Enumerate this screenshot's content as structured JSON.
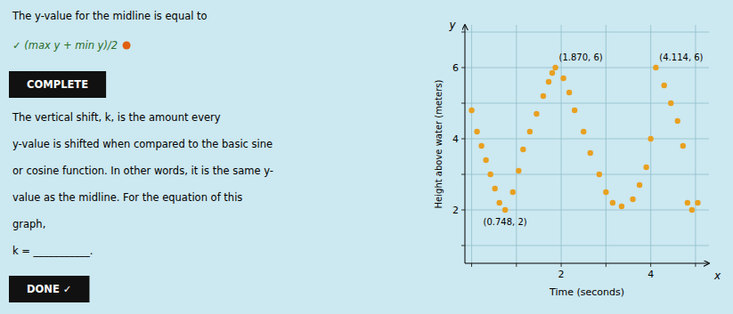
{
  "chart_data": {
    "type": "scatter",
    "title": "The y-value for the midline is equal to",
    "x": [
      0.0,
      0.12,
      0.22,
      0.32,
      0.42,
      0.52,
      0.62,
      0.748,
      0.92,
      1.05,
      1.15,
      1.3,
      1.45,
      1.6,
      1.72,
      1.8,
      1.87,
      2.05,
      2.18,
      2.3,
      2.5,
      2.65,
      2.85,
      3.0,
      3.15,
      3.35,
      3.6,
      3.75,
      3.9,
      4.0,
      4.114,
      4.3,
      4.45,
      4.6,
      4.72,
      4.82,
      4.92,
      5.05
    ],
    "values": [
      4.8,
      4.2,
      3.8,
      3.4,
      3.0,
      2.6,
      2.2,
      2.0,
      2.5,
      3.1,
      3.7,
      4.2,
      4.7,
      5.2,
      5.6,
      5.85,
      6.0,
      5.7,
      5.3,
      4.8,
      4.2,
      3.6,
      3.0,
      2.5,
      2.2,
      2.1,
      2.3,
      2.7,
      3.2,
      4.0,
      6.0,
      5.5,
      5.0,
      4.5,
      3.8,
      2.2,
      2.0,
      2.2
    ],
    "color": "#E8A020",
    "xlabel": "Time (seconds)",
    "ylabel": "Height above water (meters)",
    "xlim": [
      -0.15,
      5.3
    ],
    "ylim": [
      0.5,
      7.2
    ],
    "xticks": [
      {
        "value": 0,
        "label": null
      },
      {
        "value": 1,
        "label": null
      },
      2,
      {
        "value": 3,
        "label": null
      },
      4,
      {
        "value": 5,
        "label": null
      }
    ],
    "yticks": [
      {
        "value": 1,
        "label": null
      },
      2,
      {
        "value": 3,
        "label": null
      },
      4,
      {
        "value": 5,
        "label": null
      },
      6,
      {
        "value": 7,
        "label": null
      }
    ],
    "grid": true,
    "annotations": [
      {
        "text": "(1.870, 6)",
        "x": 1.87,
        "y": 6.0
      },
      {
        "text": "(4.114, 6)",
        "x": 4.114,
        "y": 6.0
      },
      {
        "text": "(0.748, 2)",
        "x": 0.748,
        "y": 2.0
      },
      {
        "text": "x",
        "x": 5.3,
        "y": 0.5
      },
      {
        "text": "y",
        "x": -0.15,
        "y": 7.2
      },
      {
        "text": "✓ (max y + min y)/2"
      },
      {
        "text": "COMPLETE"
      },
      {
        "text": "The vertical shift, k, is the amount every"
      },
      {
        "text": "y-value is shifted when compared to the basic sine"
      },
      {
        "text": "or cosine function. In other words, it is the same y-"
      },
      {
        "text": "value as the midline. For the equation of this"
      },
      {
        "text": "graph,"
      },
      {
        "text": "k = ___________."
      },
      {
        "text": "DONE  ✓"
      }
    ]
  }
}
